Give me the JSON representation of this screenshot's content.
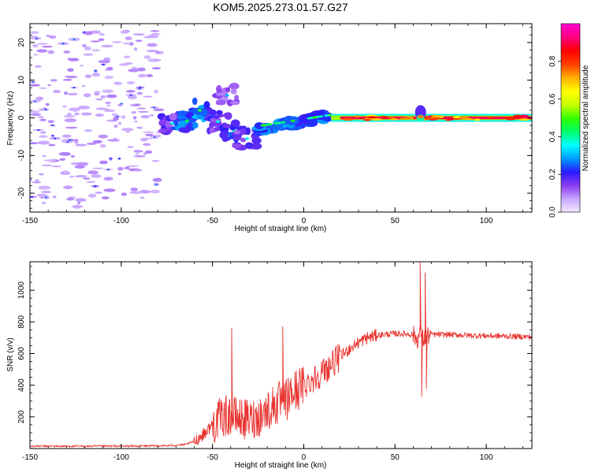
{
  "title": "KOM5.2025.273.01.57.G27",
  "chart_data": [
    {
      "type": "heatmap",
      "name": "doppler-spectrogram",
      "xlabel": "Height of straight line (km)",
      "ylabel": "Frequency (Hz)",
      "xlim": [
        -150,
        125
      ],
      "ylim": [
        -25,
        25
      ],
      "x_ticks": [
        -150,
        -100,
        -50,
        0,
        50,
        100
      ],
      "y_ticks": [
        -20,
        -10,
        0,
        10,
        20
      ],
      "colorbar": {
        "label": "Normalized spectral amplitude",
        "range": [
          0,
          1
        ],
        "ticks": [
          0.0,
          0.2,
          0.4,
          0.6,
          0.8
        ],
        "tick_labels": [
          "0.0",
          "0.2",
          "0.4",
          "0.6",
          "0.8"
        ],
        "colors": [
          "#f4ecff",
          "#c9a6ff",
          "#8a3cf0",
          "#2a1aff",
          "#009cff",
          "#00ffff",
          "#00ff6a",
          "#33ff00",
          "#c8ff00",
          "#ffff00",
          "#ffb000",
          "#ff4000",
          "#ff0000",
          "#ff0080",
          "#ff00d0"
        ]
      },
      "features": [
        {
          "name": "noise-field",
          "x_range": [
            -150,
            -78
          ],
          "freq_range": [
            -24,
            24
          ],
          "amplitude": 0.05
        },
        {
          "name": "clump-a",
          "x": -72,
          "freq": -1.5,
          "amplitude": 0.2
        },
        {
          "name": "clump-b",
          "x": -64,
          "freq": -0.8,
          "amplitude": 0.3
        },
        {
          "name": "clump-c",
          "x": -57,
          "freq": 2.0,
          "amplitude": 0.32
        },
        {
          "name": "clump-d",
          "x": -47,
          "freq": -1.0,
          "amplitude": 0.22
        },
        {
          "name": "clump-e",
          "x": -38,
          "freq": -3.5,
          "amplitude": 0.26
        },
        {
          "name": "clump-f",
          "x": -31,
          "freq": -5.5,
          "amplitude": 0.2
        },
        {
          "name": "clump-g",
          "x": -42,
          "freq": 6.0,
          "amplitude": 0.15
        },
        {
          "name": "band-rise",
          "x_range": [
            -25,
            15
          ],
          "freq": -0.5,
          "amplitude": 0.38
        },
        {
          "name": "steady-band",
          "x_range": [
            15,
            125
          ],
          "freq": 0.0,
          "amplitude": 0.85
        },
        {
          "name": "spike-blob",
          "x": 64,
          "freq": 0.5,
          "amplitude": 0.45
        }
      ]
    },
    {
      "type": "line",
      "name": "snr-trace",
      "xlabel": "Height of straight line (km)",
      "ylabel": "SNR (v/v)",
      "xlim": [
        -150,
        125
      ],
      "ylim": [
        0,
        1180
      ],
      "x_ticks": [
        -150,
        -100,
        -50,
        0,
        50,
        100
      ],
      "y_ticks": [
        200,
        400,
        600,
        800,
        1000
      ],
      "color": "#e8322e",
      "series": [
        {
          "name": "SNR",
          "x": [
            -150,
            -130,
            -110,
            -90,
            -75,
            -65,
            -60,
            -55,
            -50,
            -45,
            -40,
            -35,
            -30,
            -25,
            -20,
            -15,
            -10,
            -5,
            0,
            5,
            10,
            15,
            20,
            25,
            30,
            35,
            40,
            45,
            50,
            55,
            60,
            62,
            63,
            64,
            65,
            66,
            67,
            70,
            80,
            90,
            100,
            110,
            125
          ],
          "values": [
            15,
            15,
            15,
            16,
            18,
            25,
            45,
            90,
            150,
            200,
            210,
            190,
            180,
            200,
            240,
            280,
            300,
            360,
            400,
            440,
            480,
            530,
            580,
            630,
            670,
            700,
            715,
            722,
            725,
            725,
            720,
            690,
            700,
            760,
            700,
            690,
            710,
            720,
            720,
            715,
            712,
            710,
            705
          ]
        }
      ],
      "annotations": [
        {
          "x": -39.5,
          "value": 760
        },
        {
          "x": -11.5,
          "value": 770
        },
        {
          "x": 63.8,
          "value": 1180
        },
        {
          "x": 64.6,
          "value": 330
        },
        {
          "x": 66.5,
          "value": 1110
        },
        {
          "x": 67.2,
          "value": 380
        }
      ]
    }
  ]
}
